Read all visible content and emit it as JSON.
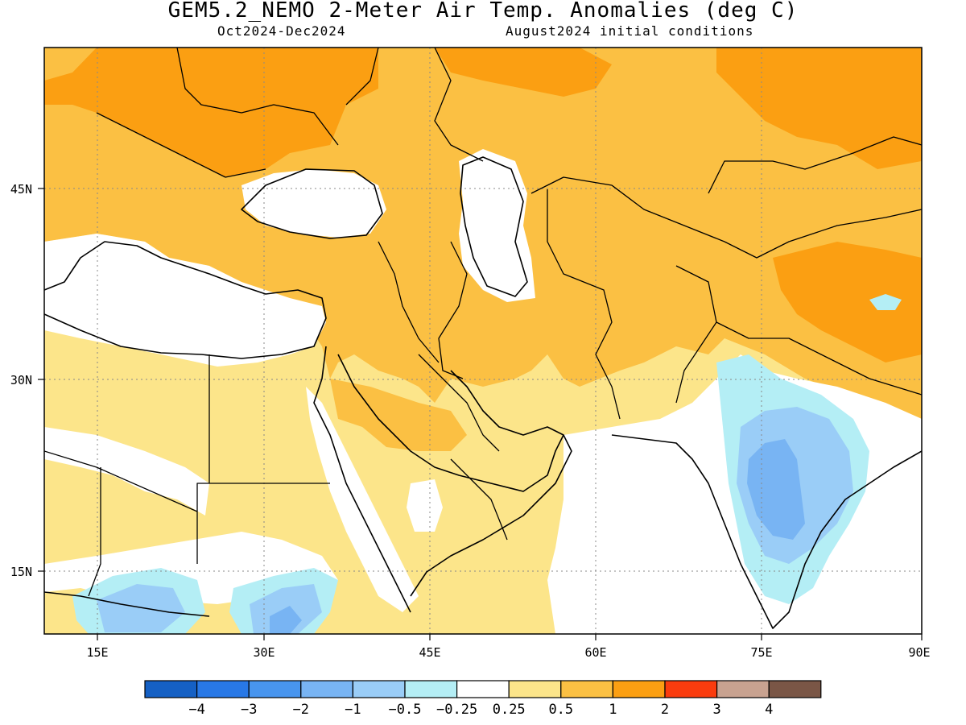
{
  "title": "GEM5.2_NEMO 2-Meter Air Temp. Anomalies (deg C)",
  "subtitle_left": "Oct2024-Dec2024",
  "subtitle_right": "August2024 initial conditions",
  "axes": {
    "x_ticks": [
      "15E",
      "30E",
      "45E",
      "60E",
      "75E",
      "90E"
    ],
    "y_ticks": [
      "45N",
      "30N",
      "15N"
    ]
  },
  "colorbar": {
    "labels": [
      "-4",
      "-3",
      "-2",
      "-1",
      "-0.5",
      "-0.25",
      "0.25",
      "0.5",
      "1",
      "2",
      "3",
      "4"
    ],
    "colors": [
      "#1560c4",
      "#2878e6",
      "#4895ee",
      "#78b4f3",
      "#9acdf7",
      "#b4eef5",
      "#ffffff",
      "#fce58a",
      "#fbc043",
      "#fb9f12",
      "#fa3c0e",
      "#c8a290",
      "#7a5646"
    ]
  },
  "legend_colors": {
    "neutral": "#ffffff",
    "light_warm": "#fce58a",
    "warm": "#fbc043",
    "hot": "#fb9f12",
    "light_cool": "#b4eef5",
    "cool": "#9acdf7",
    "cold": "#78b4f3"
  }
}
